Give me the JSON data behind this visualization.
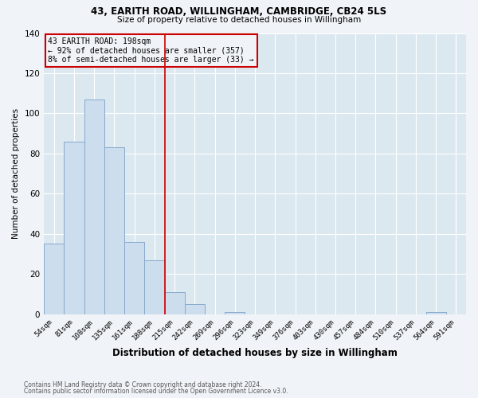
{
  "title_line1": "43, EARITH ROAD, WILLINGHAM, CAMBRIDGE, CB24 5LS",
  "title_line2": "Size of property relative to detached houses in Willingham",
  "xlabel": "Distribution of detached houses by size in Willingham",
  "ylabel": "Number of detached properties",
  "bar_labels": [
    "54sqm",
    "81sqm",
    "108sqm",
    "135sqm",
    "161sqm",
    "188sqm",
    "215sqm",
    "242sqm",
    "269sqm",
    "296sqm",
    "323sqm",
    "349sqm",
    "376sqm",
    "403sqm",
    "430sqm",
    "457sqm",
    "484sqm",
    "510sqm",
    "537sqm",
    "564sqm",
    "591sqm"
  ],
  "bar_values": [
    35,
    86,
    107,
    83,
    36,
    27,
    11,
    5,
    0,
    1,
    0,
    0,
    0,
    0,
    0,
    0,
    0,
    0,
    0,
    1,
    0
  ],
  "bar_color": "#ccdded",
  "bar_edge_color": "#88aacc",
  "ylim": [
    0,
    140
  ],
  "yticks": [
    0,
    20,
    40,
    60,
    80,
    100,
    120,
    140
  ],
  "property_line_x": 5.5,
  "property_line_color": "#cc0000",
  "annotation_title": "43 EARITH ROAD: 198sqm",
  "annotation_line1": "← 92% of detached houses are smaller (357)",
  "annotation_line2": "8% of semi-detached houses are larger (33) →",
  "annotation_box_color": "#cc0000",
  "footnote1": "Contains HM Land Registry data © Crown copyright and database right 2024.",
  "footnote2": "Contains public sector information licensed under the Open Government Licence v3.0.",
  "background_color": "#f0f4f8",
  "plot_bg_color": "#dce8f0",
  "fig_width": 6.0,
  "fig_height": 5.0,
  "dpi": 100
}
